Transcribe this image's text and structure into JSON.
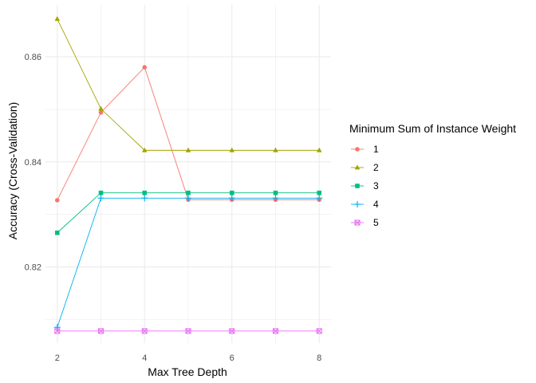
{
  "chart_data": {
    "type": "line",
    "xlabel": "Max Tree Depth",
    "ylabel": "Accuracy (Cross-Validation)",
    "x": [
      2,
      3,
      4,
      5,
      6,
      7,
      8
    ],
    "xlim": [
      2,
      8
    ],
    "ylim": [
      0.8078,
      0.8672
    ],
    "x_ticks": [
      2,
      4,
      6,
      8
    ],
    "x_tick_labels": [
      "2",
      "4",
      "6",
      "8"
    ],
    "y_ticks": [
      0.82,
      0.84,
      0.86
    ],
    "y_tick_labels": [
      "0.82",
      "0.84",
      "0.86"
    ],
    "grid": true,
    "legend": {
      "title": "Minimum Sum of Instance Weight",
      "placement": "right"
    },
    "series": [
      {
        "name": "1",
        "color": "#F8766D",
        "marker": "circle",
        "values": [
          0.8327,
          0.8494,
          0.858,
          0.8328,
          0.8328,
          0.8328,
          0.8328
        ]
      },
      {
        "name": "2",
        "color": "#A3A500",
        "marker": "triangle",
        "values": [
          0.8672,
          0.8501,
          0.8422,
          0.8422,
          0.8422,
          0.8422,
          0.8422
        ]
      },
      {
        "name": "3",
        "color": "#00BF7D",
        "marker": "square",
        "values": [
          0.8265,
          0.8341,
          0.8341,
          0.8341,
          0.8341,
          0.8341,
          0.8341
        ]
      },
      {
        "name": "4",
        "color": "#00B0F6",
        "marker": "plus",
        "values": [
          0.8085,
          0.8331,
          0.8331,
          0.8331,
          0.8331,
          0.8331,
          0.8331
        ]
      },
      {
        "name": "5",
        "color": "#E76BF3",
        "marker": "boxcross",
        "values": [
          0.8078,
          0.8078,
          0.8078,
          0.8078,
          0.8078,
          0.8078,
          0.8078
        ]
      }
    ]
  }
}
